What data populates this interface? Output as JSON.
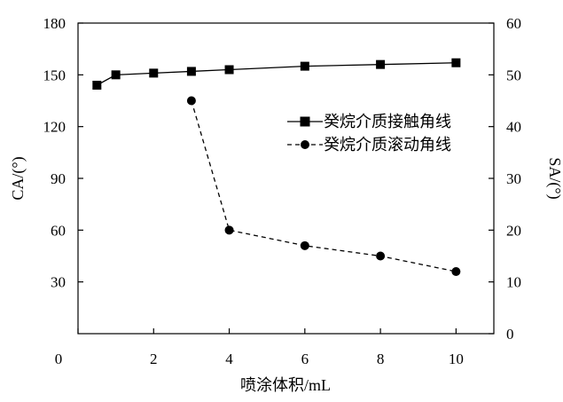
{
  "chart_data": {
    "type": "line",
    "xlabel": "喷涂体积/mL",
    "ylabel_left": "CA/(°)",
    "ylabel_right": "SA/(°)",
    "xlim": [
      0,
      11
    ],
    "ylim_left": [
      0,
      180
    ],
    "ylim_right": [
      0,
      60
    ],
    "x_ticks": [
      0,
      2,
      4,
      6,
      8,
      10
    ],
    "y_ticks_left": [
      30,
      60,
      90,
      120,
      150,
      180
    ],
    "y_ticks_right": [
      0,
      10,
      20,
      30,
      40,
      50,
      60
    ],
    "legend_position": "right",
    "series": [
      {
        "name": "癸烷介质接触角线",
        "axis": "left",
        "marker": "square",
        "line_style": "solid",
        "x": [
          0.5,
          1,
          2,
          3,
          4,
          6,
          8,
          10
        ],
        "y": [
          144,
          150,
          151,
          152,
          153,
          155,
          156,
          157
        ]
      },
      {
        "name": "癸烷介质滚动角线",
        "axis": "right",
        "marker": "circle",
        "line_style": "dashed",
        "x": [
          3,
          4,
          6,
          8,
          10
        ],
        "y": [
          45,
          20,
          17,
          15,
          12
        ]
      }
    ]
  }
}
